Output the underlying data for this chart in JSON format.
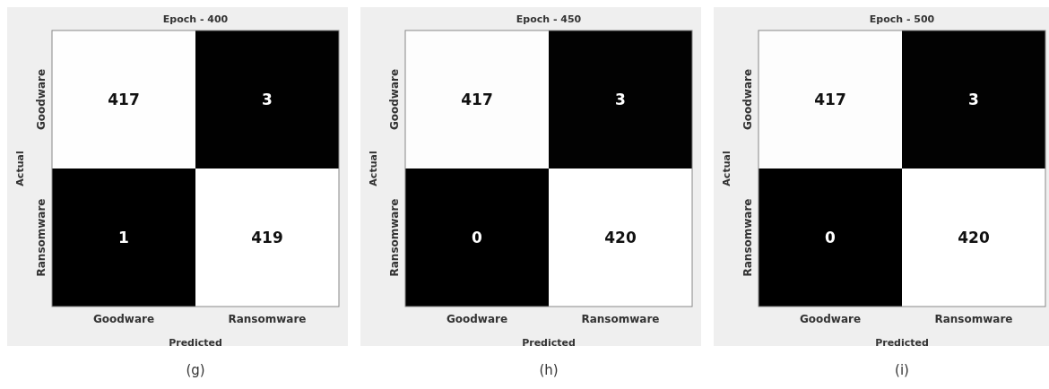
{
  "chart_data": [
    {
      "type": "heatmap",
      "title": "Epoch - 400",
      "xlabel": "Predicted",
      "ylabel": "Actual",
      "categories": [
        "Goodware",
        "Ransomware"
      ],
      "y_categories": [
        "Goodware",
        "Ransomware"
      ],
      "cells": [
        [
          417,
          3
        ],
        [
          1,
          419
        ]
      ],
      "data_labels": true,
      "annotations": [
        "(g)"
      ]
    },
    {
      "type": "heatmap",
      "title": "Epoch - 450",
      "xlabel": "Predicted",
      "ylabel": "Actual",
      "categories": [
        "Goodware",
        "Ransomware"
      ],
      "y_categories": [
        "Goodware",
        "Ransomware"
      ],
      "cells": [
        [
          417,
          3
        ],
        [
          0,
          420
        ]
      ],
      "data_labels": true,
      "annotations": [
        "(h)"
      ]
    },
    {
      "type": "heatmap",
      "title": "Epoch - 500",
      "xlabel": "Predicted",
      "ylabel": "Actual",
      "categories": [
        "Goodware",
        "Ransomware"
      ],
      "y_categories": [
        "Goodware",
        "Ransomware"
      ],
      "cells": [
        [
          417,
          3
        ],
        [
          0,
          420
        ]
      ],
      "data_labels": true,
      "annotations": [
        "(i)"
      ]
    }
  ]
}
